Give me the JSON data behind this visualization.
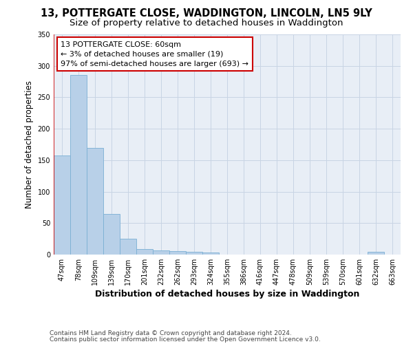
{
  "title_line1": "13, POTTERGATE CLOSE, WADDINGTON, LINCOLN, LN5 9LY",
  "title_line2": "Size of property relative to detached houses in Waddington",
  "xlabel": "Distribution of detached houses by size in Waddington",
  "ylabel": "Number of detached properties",
  "categories": [
    "47sqm",
    "78sqm",
    "109sqm",
    "139sqm",
    "170sqm",
    "201sqm",
    "232sqm",
    "262sqm",
    "293sqm",
    "324sqm",
    "355sqm",
    "386sqm",
    "416sqm",
    "447sqm",
    "478sqm",
    "509sqm",
    "539sqm",
    "570sqm",
    "601sqm",
    "632sqm",
    "663sqm"
  ],
  "values": [
    157,
    286,
    170,
    65,
    25,
    9,
    7,
    5,
    4,
    3,
    0,
    0,
    0,
    0,
    0,
    0,
    0,
    0,
    0,
    4,
    0
  ],
  "bar_color": "#b8d0e8",
  "bar_edge_color": "#7aafd4",
  "grid_color": "#c8d4e4",
  "background_color": "#e8eef6",
  "annotation_box_color": "#ffffff",
  "annotation_border_color": "#cc0000",
  "annotation_line1": "13 POTTERGATE CLOSE: 60sqm",
  "annotation_line2": "← 3% of detached houses are smaller (19)",
  "annotation_line3": "97% of semi-detached houses are larger (693) →",
  "footer_line1": "Contains HM Land Registry data © Crown copyright and database right 2024.",
  "footer_line2": "Contains public sector information licensed under the Open Government Licence v3.0.",
  "ylim": [
    0,
    350
  ],
  "yticks": [
    0,
    50,
    100,
    150,
    200,
    250,
    300,
    350
  ],
  "title_fontsize": 10.5,
  "subtitle_fontsize": 9.5,
  "ylabel_fontsize": 8.5,
  "xlabel_fontsize": 9,
  "tick_fontsize": 7,
  "annotation_fontsize": 8,
  "footer_fontsize": 6.5
}
